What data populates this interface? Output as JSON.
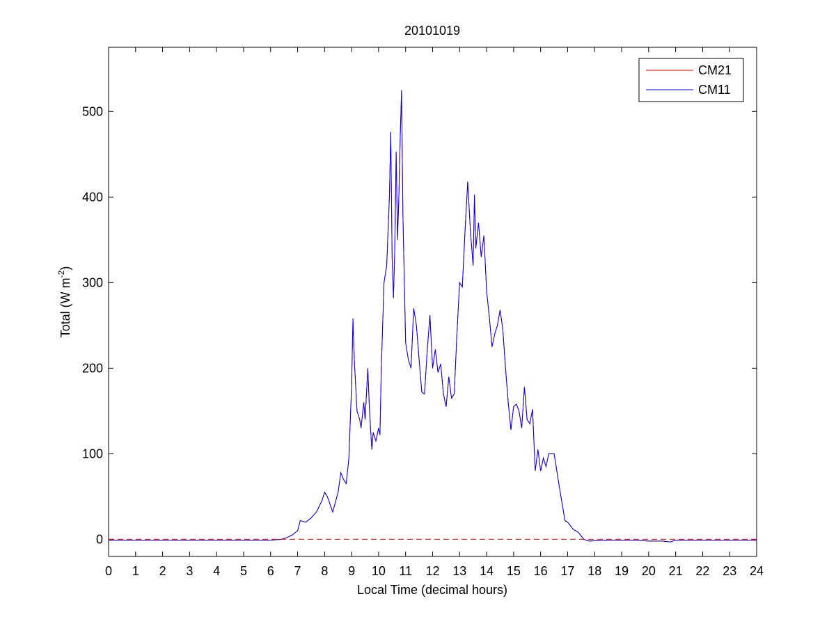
{
  "chart_data": {
    "type": "line",
    "title": "20101019",
    "xlabel": "Local Time (decimal hours)",
    "ylabel": {
      "text": "Total (W m",
      "superscript": "-2",
      "suffix": ")"
    },
    "x": [
      0,
      6,
      6.4,
      6.6,
      6.8,
      7.0,
      7.1,
      7.3,
      7.5,
      7.7,
      7.9,
      8.0,
      8.1,
      8.3,
      8.5,
      8.6,
      8.7,
      8.8,
      8.9,
      9.0,
      9.05,
      9.1,
      9.2,
      9.3,
      9.35,
      9.45,
      9.5,
      9.6,
      9.65,
      9.7,
      9.75,
      9.8,
      9.9,
      10.0,
      10.05,
      10.1,
      10.2,
      10.3,
      10.4,
      10.45,
      10.5,
      10.55,
      10.6,
      10.65,
      10.7,
      10.75,
      10.8,
      10.85,
      10.9,
      11.0,
      11.1,
      11.2,
      11.3,
      11.4,
      11.5,
      11.6,
      11.7,
      11.8,
      11.9,
      12.0,
      12.1,
      12.2,
      12.3,
      12.4,
      12.5,
      12.6,
      12.7,
      12.8,
      12.9,
      13.0,
      13.1,
      13.2,
      13.3,
      13.4,
      13.5,
      13.55,
      13.6,
      13.7,
      13.8,
      13.9,
      14.0,
      14.1,
      14.2,
      14.3,
      14.4,
      14.5,
      14.6,
      14.7,
      14.8,
      14.9,
      15.0,
      15.1,
      15.2,
      15.3,
      15.4,
      15.5,
      15.6,
      15.7,
      15.8,
      15.9,
      16.0,
      16.1,
      16.2,
      16.3,
      16.5,
      16.7,
      16.9,
      17.0,
      17.2,
      17.4,
      17.6,
      17.8,
      18.5,
      19.5,
      20.0,
      20.5,
      20.8,
      21.0,
      22.0,
      24.0
    ],
    "series": [
      {
        "name": "CM21",
        "color": "#ff0000",
        "values": [
          -1,
          -1,
          0,
          2,
          5,
          10,
          22,
          20,
          25,
          32,
          45,
          55,
          50,
          32,
          55,
          78,
          70,
          65,
          95,
          180,
          258,
          210,
          150,
          140,
          130,
          160,
          140,
          200,
          160,
          130,
          105,
          125,
          115,
          130,
          122,
          200,
          300,
          320,
          400,
          476,
          330,
          282,
          340,
          453,
          350,
          400,
          470,
          525,
          380,
          230,
          210,
          200,
          270,
          250,
          210,
          172,
          170,
          220,
          262,
          200,
          222,
          195,
          205,
          170,
          155,
          190,
          165,
          170,
          240,
          300,
          295,
          360,
          418,
          360,
          320,
          403,
          340,
          370,
          330,
          355,
          290,
          260,
          225,
          240,
          250,
          268,
          245,
          200,
          160,
          128,
          155,
          158,
          150,
          130,
          178,
          140,
          135,
          152,
          80,
          105,
          80,
          95,
          85,
          100,
          100,
          60,
          22,
          20,
          12,
          8,
          0,
          -2,
          -1,
          -1,
          -2,
          -2,
          -3,
          -1,
          -1,
          -1
        ]
      },
      {
        "name": "CM11",
        "color": "#0000ff",
        "values": [
          -1,
          -1,
          0,
          2,
          5,
          10,
          22,
          20,
          25,
          32,
          45,
          55,
          50,
          32,
          55,
          78,
          70,
          65,
          95,
          180,
          258,
          210,
          150,
          140,
          130,
          160,
          140,
          200,
          160,
          130,
          105,
          125,
          115,
          130,
          122,
          200,
          300,
          320,
          400,
          476,
          330,
          282,
          340,
          453,
          350,
          400,
          470,
          525,
          380,
          230,
          210,
          200,
          270,
          250,
          210,
          172,
          170,
          220,
          262,
          200,
          222,
          195,
          205,
          170,
          155,
          190,
          165,
          170,
          240,
          300,
          295,
          360,
          418,
          360,
          320,
          403,
          340,
          370,
          330,
          355,
          290,
          260,
          225,
          240,
          250,
          268,
          245,
          200,
          160,
          128,
          155,
          158,
          150,
          130,
          178,
          140,
          135,
          152,
          80,
          105,
          80,
          95,
          85,
          100,
          100,
          60,
          22,
          20,
          12,
          8,
          0,
          -2,
          -1,
          -1,
          -2,
          -2,
          -3,
          -1,
          -1,
          -1
        ]
      }
    ],
    "reference_line": {
      "value": 0,
      "color": "#ff0000",
      "style": "dashed"
    },
    "xlim": [
      0,
      24
    ],
    "xticks": [
      0,
      1,
      2,
      3,
      4,
      5,
      6,
      7,
      8,
      9,
      10,
      11,
      12,
      13,
      14,
      15,
      16,
      17,
      18,
      19,
      20,
      21,
      22,
      23,
      24
    ],
    "ylim": [
      -20,
      575
    ],
    "yticks": [
      0,
      100,
      200,
      300,
      400,
      500
    ],
    "grid": false,
    "legend": "top-right"
  }
}
